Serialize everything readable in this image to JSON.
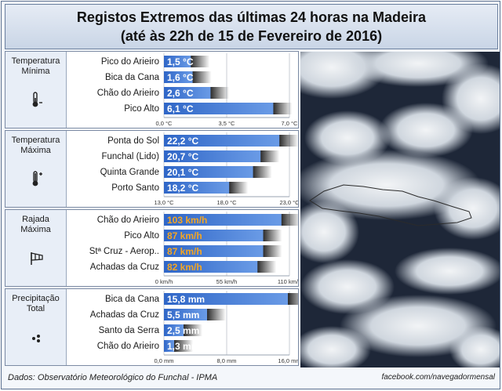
{
  "header": {
    "title_line1": "Registos Extremos das últimas 24 horas na Madeira",
    "title_line2": "(até às 22h de 15 de Fevereiro de 2016)"
  },
  "footer": {
    "source": "Dados:  Observatório Meteorológico do Funchal - IPMA",
    "facebook": "facebook.com/navegadormensal"
  },
  "icons": [
    "thermometer-low-icon",
    "thermometer-high-icon",
    "windsock-icon",
    "rain-drops-icon"
  ],
  "colors": {
    "bar": "#4a7fd6",
    "highlight": "#f5a623",
    "label": "#ffffff"
  },
  "chart_data": [
    {
      "type": "bar",
      "title": "Temperatura Mínima",
      "categories": [
        "Pico do Arieiro",
        "Bica da Cana",
        "Chão do Arieiro",
        "Pico Alto"
      ],
      "values": [
        1.5,
        1.6,
        2.6,
        6.1
      ],
      "value_labels": [
        "1,5 °C",
        "1,6 °C",
        "2,6 °C",
        "6,1 °C"
      ],
      "xlim": [
        0,
        7
      ],
      "ticks": [
        0,
        3.5,
        7
      ],
      "tick_labels": [
        "0,0 °C",
        "3,5 °C",
        "7,0 °C"
      ],
      "highlight": [
        false,
        false,
        false,
        false
      ]
    },
    {
      "type": "bar",
      "title": "Temperatura Máxima",
      "categories": [
        "Ponta do Sol",
        "Funchal (Lido)",
        "Quinta Grande",
        "Porto Santo"
      ],
      "values": [
        22.2,
        20.7,
        20.1,
        18.2
      ],
      "value_labels": [
        "22,2 °C",
        "20,7 °C",
        "20,1 °C",
        "18,2 °C"
      ],
      "xlim": [
        13,
        23
      ],
      "ticks": [
        13,
        18,
        23
      ],
      "tick_labels": [
        "13,0 °C",
        "18,0 °C",
        "23,0 °C"
      ],
      "highlight": [
        false,
        false,
        false,
        false
      ]
    },
    {
      "type": "bar",
      "title": "Rajada Máxima",
      "categories": [
        "Chão do Arieiro",
        "Pico Alto",
        "Stª Cruz - Aerop..",
        "Achadas da Cruz"
      ],
      "values": [
        103,
        87,
        87,
        82
      ],
      "value_labels": [
        "103 km/h",
        "87 km/h",
        "87 km/h",
        "82 km/h"
      ],
      "xlim": [
        0,
        110
      ],
      "ticks": [
        0,
        55,
        110
      ],
      "tick_labels": [
        "0 km/h",
        "55 km/h",
        "110 km/h"
      ],
      "highlight": [
        true,
        true,
        true,
        true
      ]
    },
    {
      "type": "bar",
      "title": "Precipitação Total",
      "categories": [
        "Bica da Cana",
        "Achadas da Cruz",
        "Santo da Serra",
        "Chão do Arieiro"
      ],
      "values": [
        15.8,
        5.5,
        2.5,
        1.3
      ],
      "value_labels": [
        "15,8 mm",
        "5,5 mm",
        "2,5 mm",
        "1,3 mm"
      ],
      "xlim": [
        0,
        16
      ],
      "ticks": [
        0,
        8,
        16
      ],
      "tick_labels": [
        "0,0 mm",
        "8,0 mm",
        "16,0 mm"
      ],
      "highlight": [
        false,
        false,
        false,
        false
      ]
    }
  ],
  "panels": [
    {
      "label_line1": "Temperatura",
      "label_line2": "Mínima"
    },
    {
      "label_line1": "Temperatura",
      "label_line2": "Máxima"
    },
    {
      "label_line1": "Rajada",
      "label_line2": "Máxima"
    },
    {
      "label_line1": "Precipitação",
      "label_line2": "Total"
    }
  ]
}
